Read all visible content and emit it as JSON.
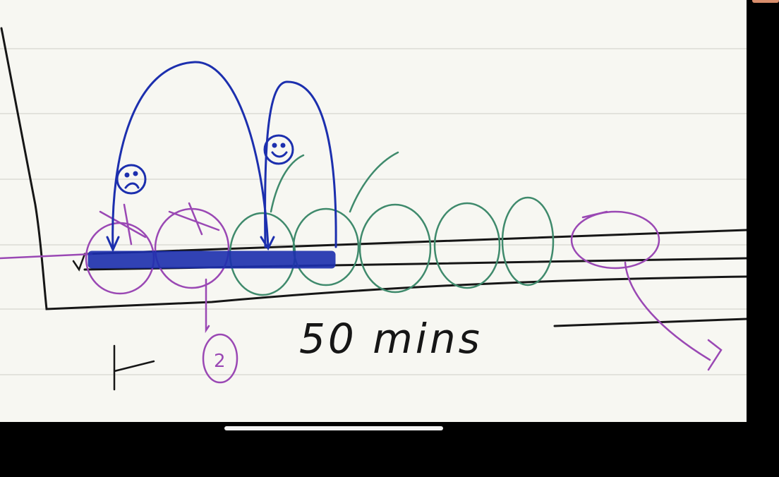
{
  "note": {
    "duration_label": "50 mins",
    "count_label": "2",
    "colors": {
      "paper": "#f7f7f2",
      "ruled_line": "#e2e2dc",
      "black_ink": "#161616",
      "blue_ink": "#1c2fae",
      "purple_ink": "#9a48b4",
      "green_ink": "#3f8a6c"
    }
  },
  "system": {
    "home_indicator": "home-indicator-bar"
  }
}
